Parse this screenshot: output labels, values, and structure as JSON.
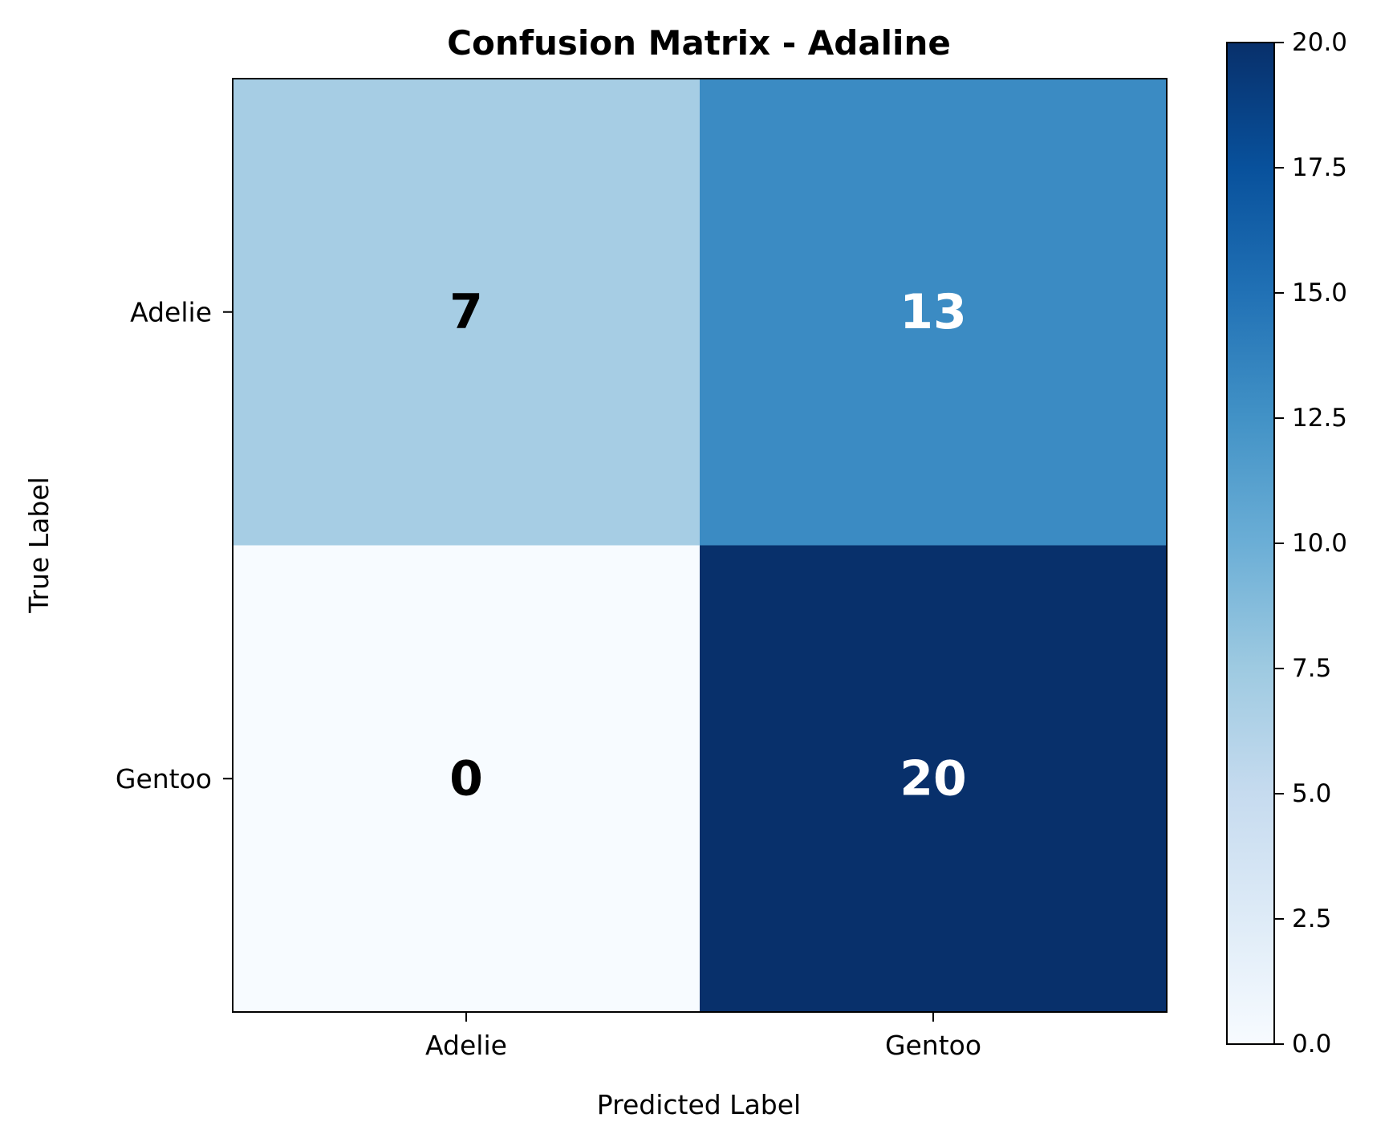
{
  "chart_data": {
    "type": "heatmap",
    "title": "Confusion Matrix - Adaline",
    "xlabel": "Predicted Label",
    "ylabel": "True Label",
    "x_categories": [
      "Adelie",
      "Gentoo"
    ],
    "y_categories": [
      "Adelie",
      "Gentoo"
    ],
    "values": [
      [
        7,
        13
      ],
      [
        0,
        20
      ]
    ],
    "colormap": "Blues",
    "colorbar": {
      "range": [
        0,
        20
      ],
      "ticks": [
        0,
        2.5,
        5,
        7.5,
        10,
        12.5,
        15,
        17.5,
        20
      ],
      "tick_labels": [
        "0.0",
        "2.5",
        "5.0",
        "7.5",
        "10.0",
        "12.5",
        "15.0",
        "17.5",
        "20.0"
      ],
      "placement": "right"
    },
    "cell_text_colors": {
      "dark": "#000000",
      "light": "#ffffff"
    },
    "grid": false
  }
}
